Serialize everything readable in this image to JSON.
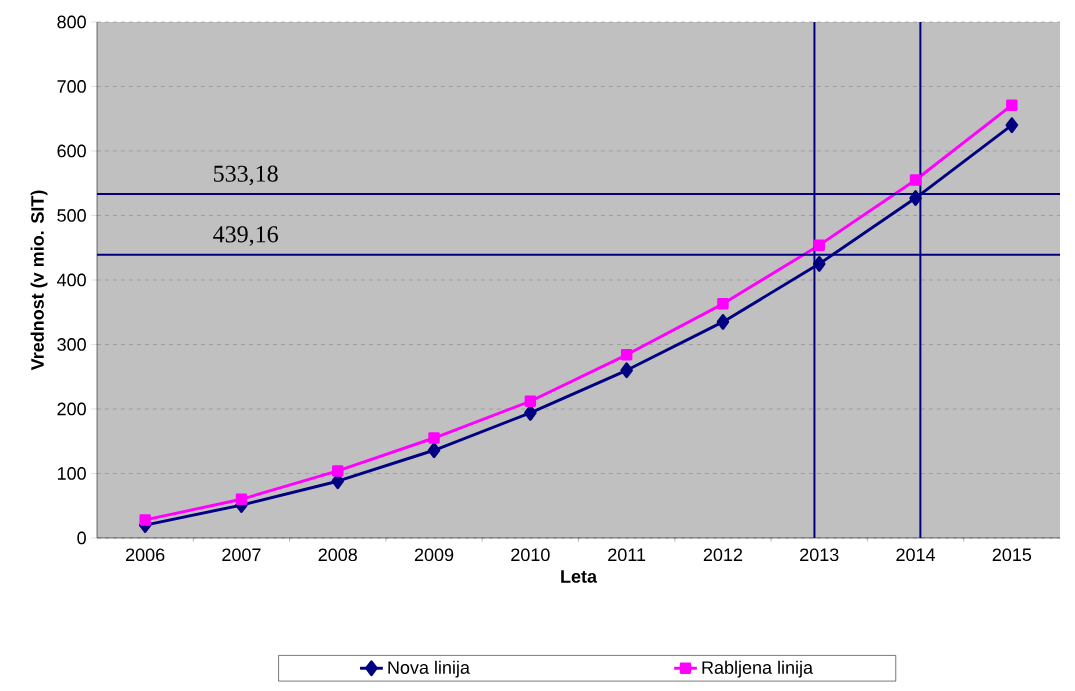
{
  "chart_data": {
    "type": "line",
    "xlabel": "Leta",
    "ylabel": "Vrednost (v mio. SIT)",
    "x": [
      2006,
      2007,
      2008,
      2009,
      2010,
      2011,
      2012,
      2013,
      2014,
      2015
    ],
    "xlim": [
      2005.5,
      2015.5
    ],
    "xticks": [
      2006,
      2007,
      2008,
      2009,
      2010,
      2011,
      2012,
      2013,
      2014,
      2015
    ],
    "ylim": [
      0,
      800
    ],
    "yticks": [
      0,
      100,
      200,
      300,
      400,
      500,
      600,
      700,
      800
    ],
    "grid": "y",
    "legend": "bottom",
    "series": [
      {
        "name": "Nova linija",
        "color": "#000080",
        "marker": "diamond",
        "values": [
          20,
          51,
          88,
          136,
          194,
          260,
          335,
          425,
          527,
          640
        ]
      },
      {
        "name": "Rabljena linija",
        "color": "#ff00ff",
        "marker": "square",
        "values": [
          28,
          60,
          104,
          155,
          212,
          284,
          363,
          454,
          555,
          671
        ]
      }
    ],
    "ref_lines": [
      {
        "axis": "y",
        "value": 533.18,
        "label": "533,18",
        "color": "#000080"
      },
      {
        "axis": "y",
        "value": 439.16,
        "label": "439,16",
        "color": "#000080"
      },
      {
        "axis": "x",
        "value": 2012.95,
        "color": "#000080"
      },
      {
        "axis": "x",
        "value": 2014.05,
        "color": "#000080"
      }
    ]
  }
}
